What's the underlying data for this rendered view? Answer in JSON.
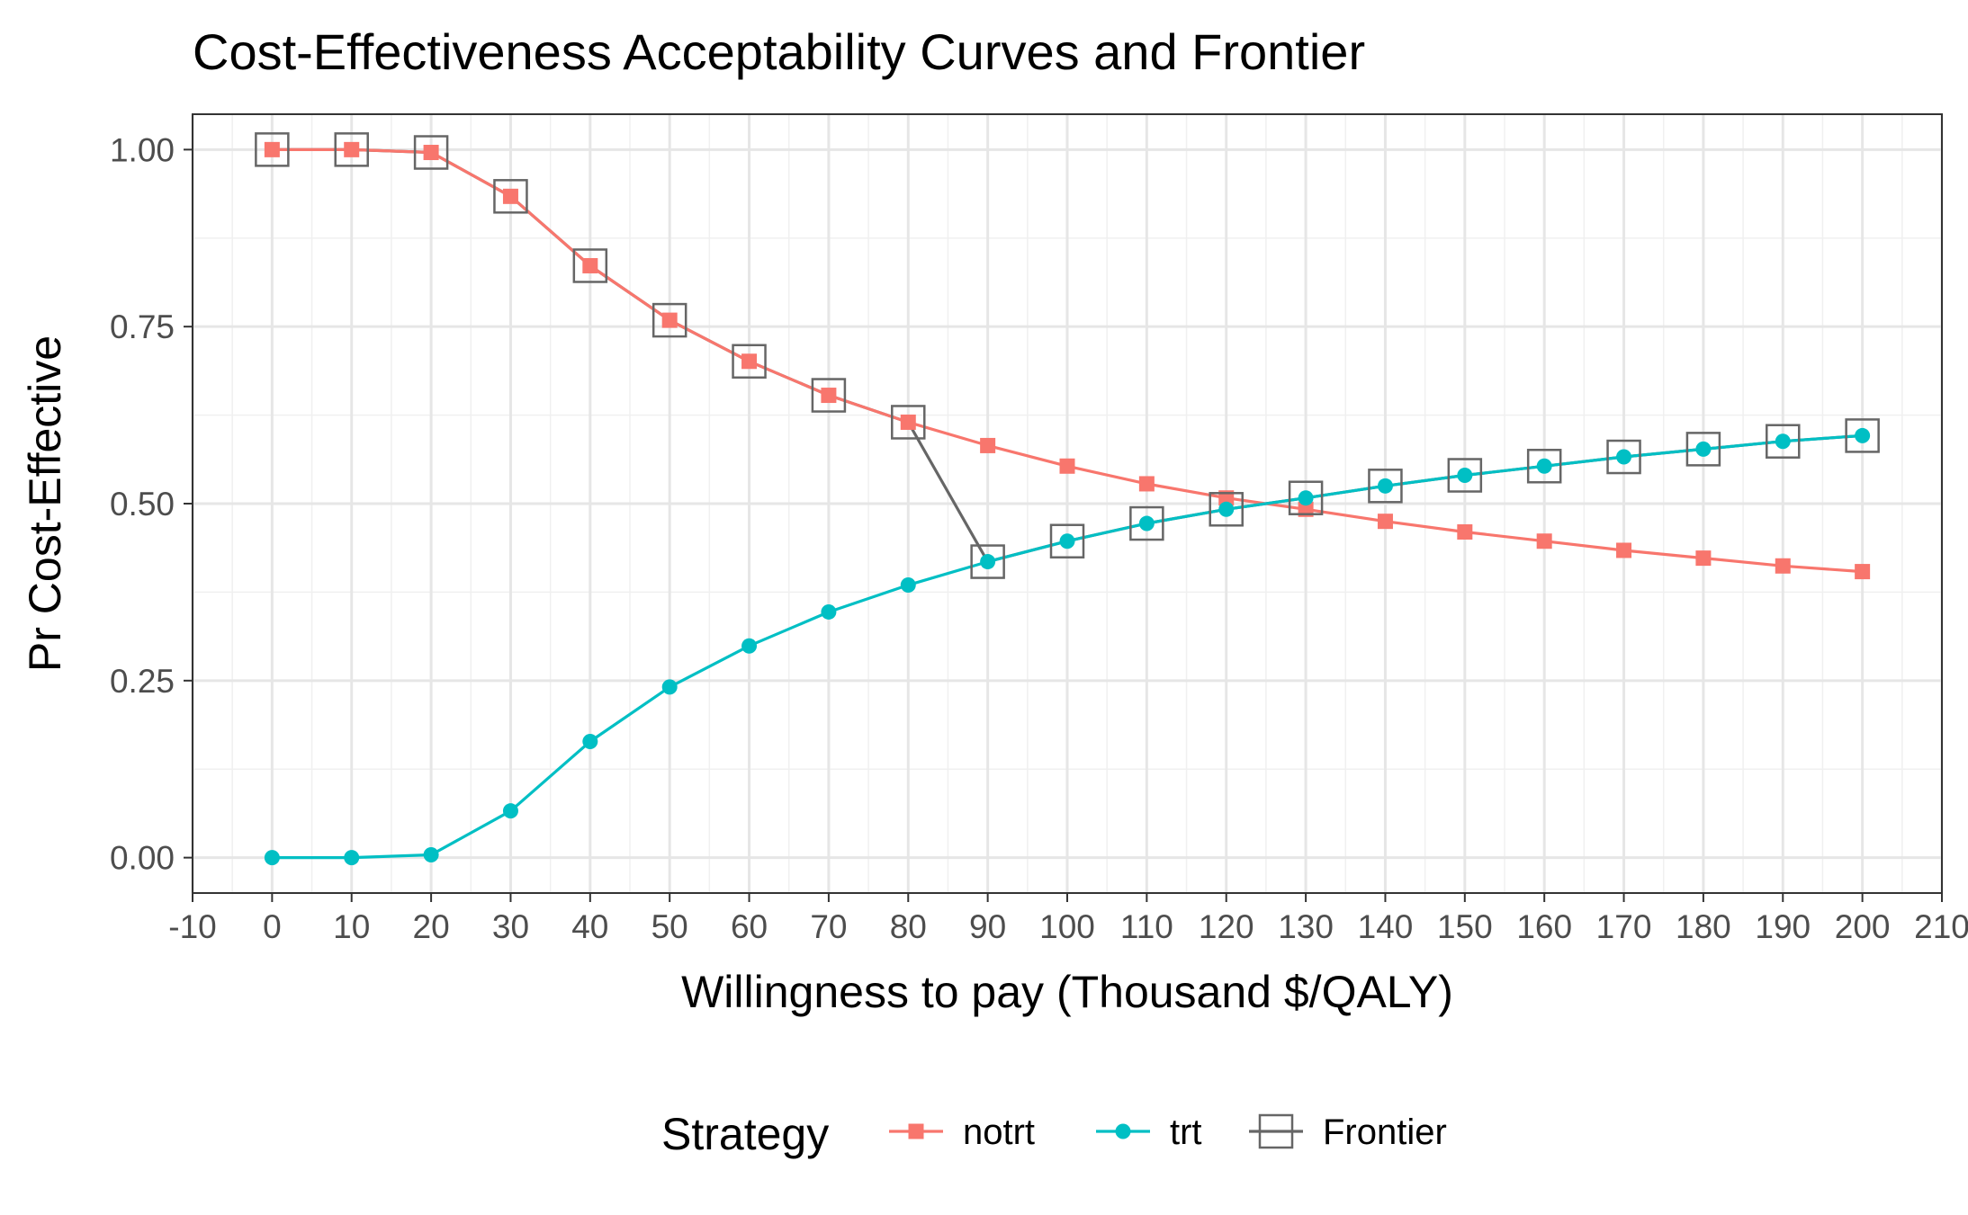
{
  "chart_data": {
    "type": "line",
    "title": "Cost-Effectiveness Acceptability Curves and Frontier",
    "xlabel": "Willingness to pay (Thousand $/QALY)",
    "ylabel": "Pr Cost-Effective",
    "xlim": [
      -10,
      210
    ],
    "ylim": [
      -0.05,
      1.05
    ],
    "x_ticks": [
      -10,
      0,
      10,
      20,
      30,
      40,
      50,
      60,
      70,
      80,
      90,
      100,
      110,
      120,
      130,
      140,
      150,
      160,
      170,
      180,
      190,
      200,
      210
    ],
    "y_ticks": [
      0.0,
      0.25,
      0.5,
      0.75,
      1.0
    ],
    "y_tick_labels": [
      "0.00",
      "0.25",
      "0.50",
      "0.75",
      "1.00"
    ],
    "grid": true,
    "legend": {
      "title": "Strategy",
      "placement": "bottom"
    },
    "x": [
      0,
      10,
      20,
      30,
      40,
      50,
      60,
      70,
      80,
      90,
      100,
      110,
      120,
      130,
      140,
      150,
      160,
      170,
      180,
      190,
      200
    ],
    "series": [
      {
        "name": "notrt",
        "color": "#F8766D",
        "marker": "square",
        "values": [
          1.0,
          1.0,
          0.996,
          0.934,
          0.836,
          0.759,
          0.701,
          0.653,
          0.615,
          0.582,
          0.553,
          0.528,
          0.508,
          0.492,
          0.475,
          0.46,
          0.447,
          0.434,
          0.423,
          0.412,
          0.404
        ]
      },
      {
        "name": "trt",
        "color": "#00BFC4",
        "marker": "circle",
        "values": [
          0.0,
          0.0,
          0.004,
          0.066,
          0.164,
          0.241,
          0.299,
          0.347,
          0.385,
          0.418,
          0.447,
          0.472,
          0.492,
          0.508,
          0.525,
          0.54,
          0.553,
          0.566,
          0.577,
          0.588,
          0.596
        ]
      },
      {
        "name": "Frontier",
        "color": "#666666",
        "marker": "open-square",
        "values": [
          1.0,
          1.0,
          0.996,
          0.934,
          0.836,
          0.759,
          0.701,
          0.653,
          0.615,
          0.418,
          0.447,
          0.472,
          0.492,
          0.508,
          0.525,
          0.54,
          0.553,
          0.566,
          0.577,
          0.588,
          0.596
        ]
      }
    ]
  }
}
